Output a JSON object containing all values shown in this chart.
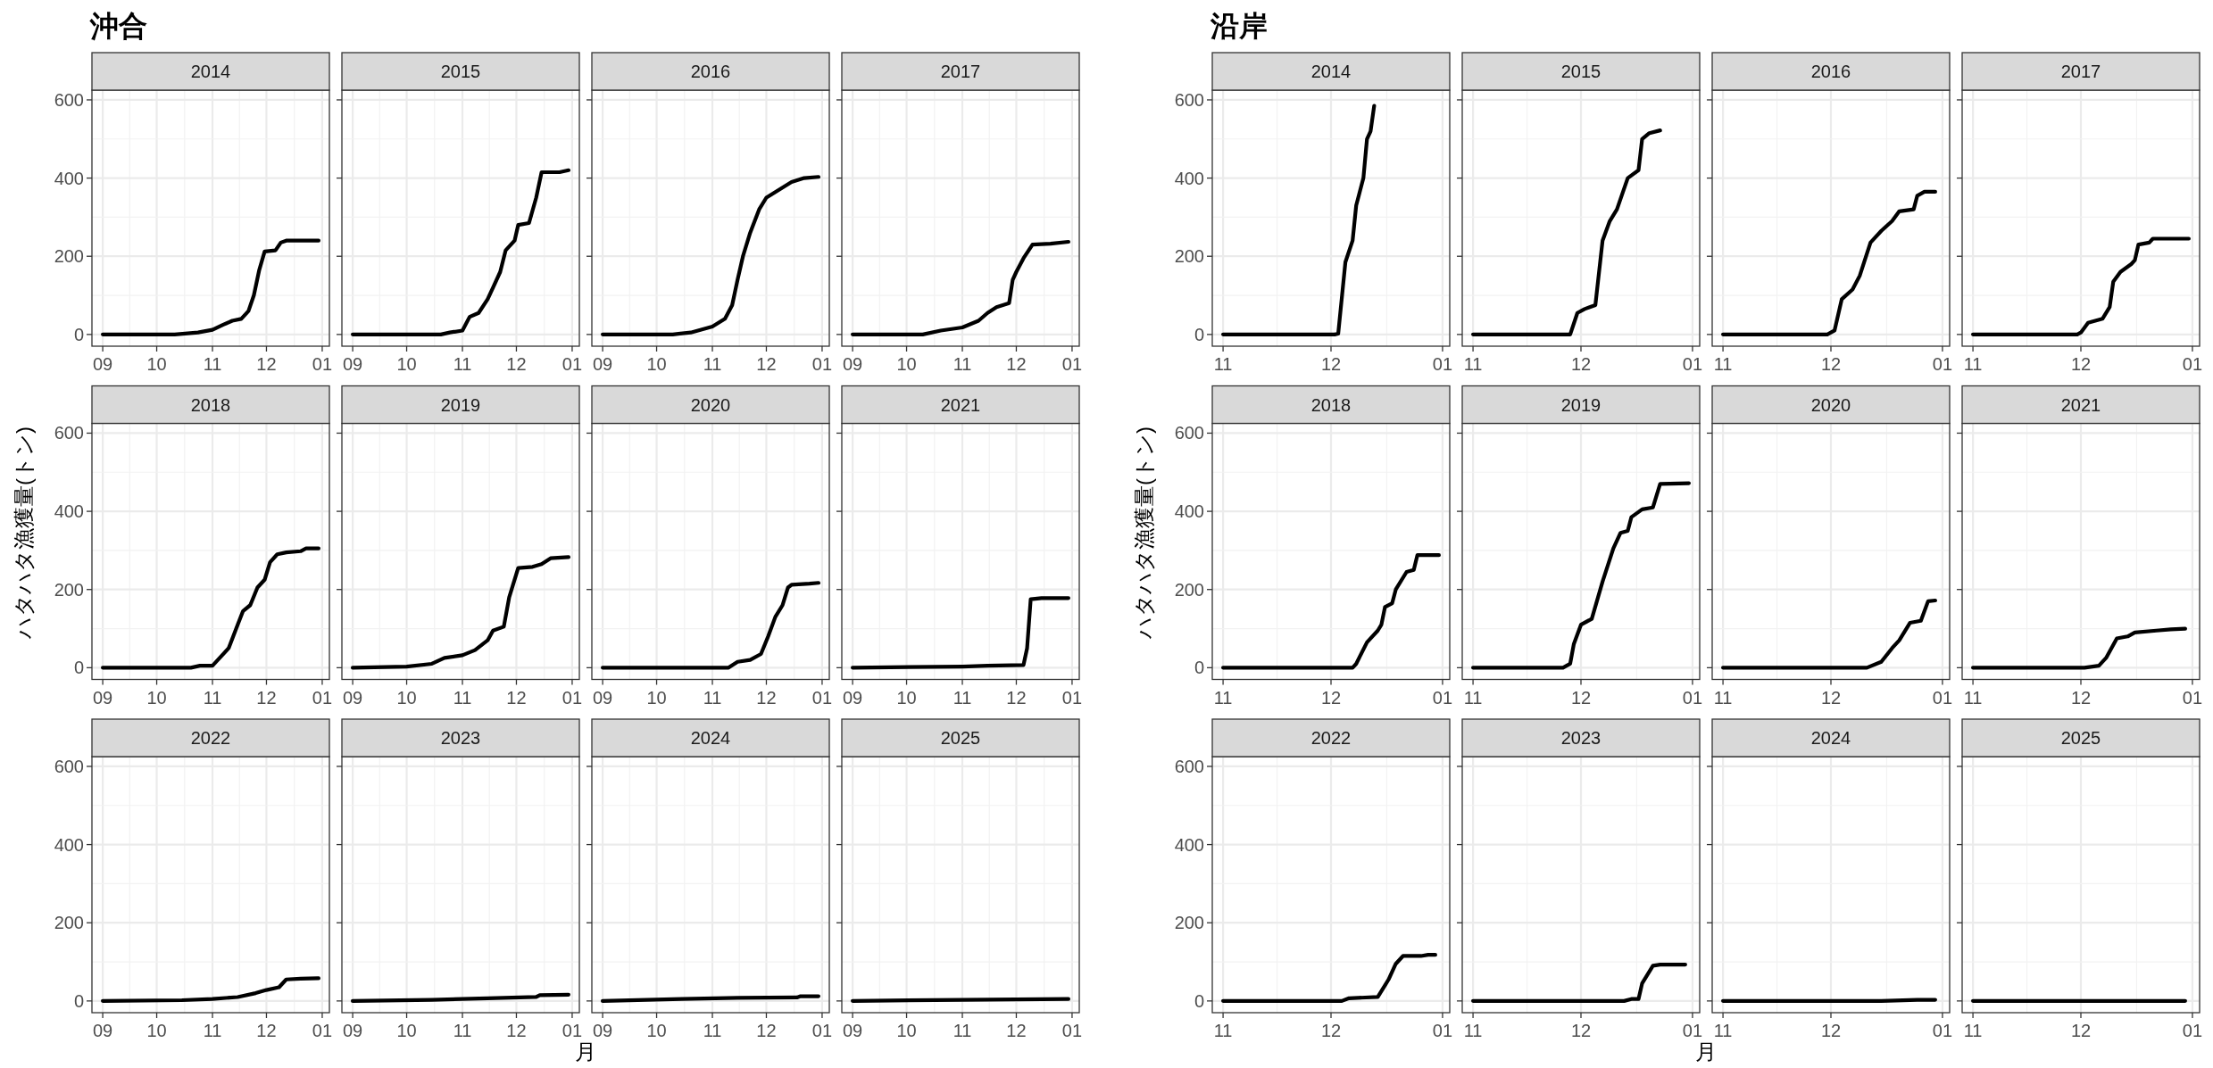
{
  "chart_data": [
    {
      "type": "line",
      "title": "2014",
      "annotations": [
        "沖合"
      ],
      "x": [
        "2014-09-01",
        "2014-10-11",
        "2014-10-24",
        "2014-11-01",
        "2014-11-07",
        "2014-11-12",
        "2014-11-17",
        "2014-11-21",
        "2014-11-24",
        "2014-11-27",
        "2014-11-30",
        "2014-12-06",
        "2014-12-09",
        "2014-12-12",
        "2014-12-30"
      ],
      "values": [
        0,
        0,
        5,
        12,
        25,
        35,
        40,
        60,
        100,
        165,
        212,
        215,
        235,
        240,
        240
      ],
      "color": "#000000",
      "xlim": [
        "2014-08-26",
        "2015-01-05"
      ],
      "xticks": [
        {
          "value": "2014-09-01",
          "label": "09"
        },
        {
          "value": "2014-10-01",
          "label": "10"
        },
        {
          "value": "2014-11-01",
          "label": "11"
        },
        {
          "value": "2014-12-01",
          "label": "12"
        },
        {
          "value": "2015-01-01",
          "label": "01"
        }
      ],
      "ylim": [
        -30,
        625
      ],
      "yticks": [
        0,
        200,
        400,
        600
      ],
      "grid": true
    },
    {
      "type": "line",
      "title": "2015",
      "x": [
        "2015-09-01",
        "2015-10-20",
        "2015-10-25",
        "2015-11-01",
        "2015-11-05",
        "2015-11-10",
        "2015-11-15",
        "2015-11-18",
        "2015-11-22",
        "2015-11-25",
        "2015-11-30",
        "2015-12-02",
        "2015-12-08",
        "2015-12-12",
        "2015-12-15",
        "2015-12-25",
        "2015-12-30"
      ],
      "values": [
        0,
        0,
        5,
        10,
        45,
        55,
        90,
        120,
        160,
        215,
        240,
        280,
        285,
        350,
        415,
        415,
        420
      ],
      "color": "#000000",
      "xlim": [
        "2015-08-26",
        "2016-01-05"
      ],
      "xticks": [
        {
          "value": "2015-09-01",
          "label": "09"
        },
        {
          "value": "2015-10-01",
          "label": "10"
        },
        {
          "value": "2015-11-01",
          "label": "11"
        },
        {
          "value": "2015-12-01",
          "label": "12"
        },
        {
          "value": "2016-01-01",
          "label": "01"
        }
      ],
      "ylim": [
        -30,
        625
      ],
      "yticks": [
        0,
        200,
        400,
        600
      ],
      "grid": true,
      "tick_labels": "x"
    },
    {
      "type": "line",
      "title": "2016",
      "x": [
        "2016-09-01",
        "2016-10-10",
        "2016-10-20",
        "2016-11-01",
        "2016-11-08",
        "2016-11-12",
        "2016-11-15",
        "2016-11-18",
        "2016-11-22",
        "2016-11-27",
        "2016-12-01",
        "2016-12-08",
        "2016-12-15",
        "2016-12-22",
        "2016-12-30"
      ],
      "values": [
        0,
        0,
        5,
        20,
        40,
        75,
        140,
        200,
        260,
        320,
        350,
        370,
        390,
        400,
        403
      ],
      "color": "#000000",
      "xlim": [
        "2016-08-26",
        "2017-01-05"
      ],
      "xticks": [
        {
          "value": "2016-09-01",
          "label": "09"
        },
        {
          "value": "2016-10-01",
          "label": "10"
        },
        {
          "value": "2016-11-01",
          "label": "11"
        },
        {
          "value": "2016-12-01",
          "label": "12"
        },
        {
          "value": "2017-01-01",
          "label": "01"
        }
      ],
      "ylim": [
        -30,
        625
      ],
      "yticks": [
        0,
        200,
        400,
        600
      ],
      "grid": true,
      "tick_labels": "x"
    },
    {
      "type": "line",
      "title": "2017",
      "x": [
        "2017-09-01",
        "2017-10-10",
        "2017-10-20",
        "2017-11-01",
        "2017-11-10",
        "2017-11-15",
        "2017-11-20",
        "2017-11-27",
        "2017-11-29",
        "2017-12-01",
        "2017-12-05",
        "2017-12-10",
        "2017-12-20",
        "2017-12-30"
      ],
      "values": [
        0,
        0,
        10,
        18,
        35,
        55,
        70,
        80,
        140,
        160,
        195,
        230,
        232,
        237
      ],
      "color": "#000000",
      "xlim": [
        "2017-08-26",
        "2018-01-05"
      ],
      "xticks": [
        {
          "value": "2017-09-01",
          "label": "09"
        },
        {
          "value": "2017-10-01",
          "label": "10"
        },
        {
          "value": "2017-11-01",
          "label": "11"
        },
        {
          "value": "2017-12-01",
          "label": "12"
        },
        {
          "value": "2018-01-01",
          "label": "01"
        }
      ],
      "ylim": [
        -30,
        625
      ],
      "yticks": [
        0,
        200,
        400,
        600
      ],
      "grid": true,
      "tick_labels": "x"
    },
    {
      "type": "line",
      "title": "2018",
      "ylabel": "ハタハタ漁獲量(トン)",
      "x": [
        "2018-09-01",
        "2018-10-20",
        "2018-10-25",
        "2018-11-01",
        "2018-11-05",
        "2018-11-10",
        "2018-11-15",
        "2018-11-18",
        "2018-11-22",
        "2018-11-26",
        "2018-11-30",
        "2018-12-03",
        "2018-12-07",
        "2018-12-12",
        "2018-12-20",
        "2018-12-23",
        "2018-12-30"
      ],
      "values": [
        0,
        0,
        5,
        5,
        25,
        50,
        110,
        145,
        160,
        205,
        225,
        270,
        290,
        295,
        298,
        305,
        305
      ],
      "color": "#000000",
      "xlim": [
        "2018-08-26",
        "2019-01-05"
      ],
      "xticks": [
        {
          "value": "2018-09-01",
          "label": "09"
        },
        {
          "value": "2018-10-01",
          "label": "10"
        },
        {
          "value": "2018-11-01",
          "label": "11"
        },
        {
          "value": "2018-12-01",
          "label": "12"
        },
        {
          "value": "2019-01-01",
          "label": "01"
        }
      ],
      "ylim": [
        -30,
        625
      ],
      "yticks": [
        0,
        200,
        400,
        600
      ],
      "grid": true
    },
    {
      "type": "line",
      "title": "2019",
      "x": [
        "2019-09-01",
        "2019-10-01",
        "2019-10-15",
        "2019-10-22",
        "2019-11-01",
        "2019-11-08",
        "2019-11-15",
        "2019-11-18",
        "2019-11-24",
        "2019-11-27",
        "2019-12-01",
        "2019-12-02",
        "2019-12-10",
        "2019-12-15",
        "2019-12-20",
        "2019-12-30"
      ],
      "values": [
        0,
        3,
        10,
        25,
        32,
        45,
        70,
        95,
        105,
        180,
        240,
        255,
        258,
        265,
        280,
        283
      ],
      "color": "#000000",
      "xlim": [
        "2019-08-26",
        "2020-01-05"
      ],
      "xticks": [
        {
          "value": "2019-09-01",
          "label": "09"
        },
        {
          "value": "2019-10-01",
          "label": "10"
        },
        {
          "value": "2019-11-01",
          "label": "11"
        },
        {
          "value": "2019-12-01",
          "label": "12"
        },
        {
          "value": "2020-01-01",
          "label": "01"
        }
      ],
      "ylim": [
        -30,
        625
      ],
      "yticks": [
        0,
        200,
        400,
        600
      ],
      "grid": true,
      "tick_labels": "x"
    },
    {
      "type": "line",
      "title": "2020",
      "x": [
        "2020-09-01",
        "2020-11-10",
        "2020-11-15",
        "2020-11-22",
        "2020-11-28",
        "2020-12-02",
        "2020-12-06",
        "2020-12-10",
        "2020-12-13",
        "2020-12-15",
        "2020-12-25",
        "2020-12-30"
      ],
      "values": [
        0,
        0,
        15,
        20,
        35,
        80,
        130,
        160,
        205,
        212,
        215,
        217
      ],
      "color": "#000000",
      "xlim": [
        "2020-08-26",
        "2021-01-05"
      ],
      "xticks": [
        {
          "value": "2020-09-01",
          "label": "09"
        },
        {
          "value": "2020-10-01",
          "label": "10"
        },
        {
          "value": "2020-11-01",
          "label": "11"
        },
        {
          "value": "2020-12-01",
          "label": "12"
        },
        {
          "value": "2021-01-01",
          "label": "01"
        }
      ],
      "ylim": [
        -30,
        625
      ],
      "yticks": [
        0,
        200,
        400,
        600
      ],
      "grid": true,
      "tick_labels": "x"
    },
    {
      "type": "line",
      "title": "2021",
      "x": [
        "2021-09-01",
        "2021-11-01",
        "2021-11-15",
        "2021-12-05",
        "2021-12-07",
        "2021-12-09",
        "2021-12-15",
        "2021-12-30"
      ],
      "values": [
        0,
        3,
        5,
        7,
        50,
        175,
        178,
        178
      ],
      "color": "#000000",
      "xlim": [
        "2021-08-26",
        "2022-01-05"
      ],
      "xticks": [
        {
          "value": "2021-09-01",
          "label": "09"
        },
        {
          "value": "2021-10-01",
          "label": "10"
        },
        {
          "value": "2021-11-01",
          "label": "11"
        },
        {
          "value": "2021-12-01",
          "label": "12"
        },
        {
          "value": "2022-01-01",
          "label": "01"
        }
      ],
      "ylim": [
        -30,
        625
      ],
      "yticks": [
        0,
        200,
        400,
        600
      ],
      "grid": true,
      "tick_labels": "x"
    },
    {
      "type": "line",
      "title": "2022",
      "x": [
        "2022-09-01",
        "2022-10-15",
        "2022-11-01",
        "2022-11-15",
        "2022-11-25",
        "2022-12-01",
        "2022-12-08",
        "2022-12-12",
        "2022-12-20",
        "2022-12-30"
      ],
      "values": [
        0,
        2,
        5,
        10,
        20,
        28,
        35,
        55,
        57,
        58
      ],
      "color": "#000000",
      "xlim": [
        "2022-08-26",
        "2023-01-05"
      ],
      "xticks": [
        {
          "value": "2022-09-01",
          "label": "09"
        },
        {
          "value": "2022-10-01",
          "label": "10"
        },
        {
          "value": "2022-11-01",
          "label": "11"
        },
        {
          "value": "2022-12-01",
          "label": "12"
        },
        {
          "value": "2023-01-01",
          "label": "01"
        }
      ],
      "ylim": [
        -30,
        625
      ],
      "yticks": [
        0,
        200,
        400,
        600
      ],
      "grid": true
    },
    {
      "type": "line",
      "title": "2023",
      "xlabel": "月",
      "x": [
        "2023-09-01",
        "2023-10-15",
        "2023-11-15",
        "2023-12-12",
        "2023-12-14",
        "2023-12-30"
      ],
      "values": [
        0,
        3,
        7,
        10,
        15,
        16
      ],
      "color": "#000000",
      "xlim": [
        "2023-08-26",
        "2024-01-05"
      ],
      "xticks": [
        {
          "value": "2023-09-01",
          "label": "09"
        },
        {
          "value": "2023-10-01",
          "label": "10"
        },
        {
          "value": "2023-11-01",
          "label": "11"
        },
        {
          "value": "2023-12-01",
          "label": "12"
        },
        {
          "value": "2024-01-01",
          "label": "01"
        }
      ],
      "ylim": [
        -30,
        625
      ],
      "yticks": [
        0,
        200,
        400,
        600
      ],
      "grid": true,
      "tick_labels": "x"
    },
    {
      "type": "line",
      "title": "2024",
      "x": [
        "2024-09-01",
        "2024-10-15",
        "2024-11-15",
        "2024-12-18",
        "2024-12-20",
        "2024-12-30"
      ],
      "values": [
        0,
        5,
        8,
        9,
        12,
        12
      ],
      "color": "#000000",
      "xlim": [
        "2024-08-26",
        "2025-01-05"
      ],
      "xticks": [
        {
          "value": "2024-09-01",
          "label": "09"
        },
        {
          "value": "2024-10-01",
          "label": "10"
        },
        {
          "value": "2024-11-01",
          "label": "11"
        },
        {
          "value": "2024-12-01",
          "label": "12"
        },
        {
          "value": "2025-01-01",
          "label": "01"
        }
      ],
      "ylim": [
        -30,
        625
      ],
      "yticks": [
        0,
        200,
        400,
        600
      ],
      "grid": true,
      "tick_labels": "x"
    },
    {
      "type": "line",
      "title": "2025",
      "x": [
        "2025-09-01",
        "2025-11-01",
        "2025-12-30"
      ],
      "values": [
        0,
        3,
        5
      ],
      "color": "#000000",
      "xlim": [
        "2025-08-26",
        "2026-01-05"
      ],
      "xticks": [
        {
          "value": "2025-09-01",
          "label": "09"
        },
        {
          "value": "2025-10-01",
          "label": "10"
        },
        {
          "value": "2025-11-01",
          "label": "11"
        },
        {
          "value": "2025-12-01",
          "label": "12"
        },
        {
          "value": "2026-01-01",
          "label": "01"
        }
      ],
      "ylim": [
        -30,
        625
      ],
      "yticks": [
        0,
        200,
        400,
        600
      ],
      "grid": true,
      "tick_labels": "x"
    },
    {
      "type": "line",
      "title": "2014",
      "annotations": [
        "沿岸"
      ],
      "x": [
        "2014-11-01",
        "2014-12-02",
        "2014-12-03",
        "2014-12-05",
        "2014-12-07",
        "2014-12-08",
        "2014-12-10",
        "2014-12-11",
        "2014-12-12",
        "2014-12-13"
      ],
      "values": [
        0,
        0,
        2,
        185,
        240,
        330,
        400,
        500,
        520,
        585
      ],
      "color": "#000000",
      "xlim": [
        "2014-10-29",
        "2015-01-03"
      ],
      "xticks": [
        {
          "value": "2014-11-01",
          "label": "11"
        },
        {
          "value": "2014-12-01",
          "label": "12"
        },
        {
          "value": "2015-01-01",
          "label": "01"
        }
      ],
      "ylim": [
        -30,
        625
      ],
      "yticks": [
        0,
        200,
        400,
        600
      ],
      "grid": true
    },
    {
      "type": "line",
      "title": "2015",
      "x": [
        "2015-11-01",
        "2015-11-28",
        "2015-11-30",
        "2015-12-02",
        "2015-12-05",
        "2015-12-07",
        "2015-12-09",
        "2015-12-11",
        "2015-12-14",
        "2015-12-17",
        "2015-12-18",
        "2015-12-20",
        "2015-12-23"
      ],
      "values": [
        0,
        0,
        55,
        65,
        75,
        240,
        290,
        320,
        400,
        420,
        500,
        515,
        522
      ],
      "color": "#000000",
      "xlim": [
        "2015-10-29",
        "2016-01-03"
      ],
      "xticks": [
        {
          "value": "2015-11-01",
          "label": "11"
        },
        {
          "value": "2015-12-01",
          "label": "12"
        },
        {
          "value": "2016-01-01",
          "label": "01"
        }
      ],
      "ylim": [
        -30,
        625
      ],
      "yticks": [
        0,
        200,
        400,
        600
      ],
      "grid": true,
      "tick_labels": "x"
    },
    {
      "type": "line",
      "title": "2016",
      "x": [
        "2016-11-01",
        "2016-11-30",
        "2016-12-02",
        "2016-12-04",
        "2016-12-07",
        "2016-12-09",
        "2016-12-12",
        "2016-12-15",
        "2016-12-18",
        "2016-12-20",
        "2016-12-24",
        "2016-12-25",
        "2016-12-27",
        "2016-12-30"
      ],
      "values": [
        0,
        0,
        10,
        90,
        115,
        150,
        235,
        265,
        290,
        315,
        320,
        355,
        365,
        365
      ],
      "color": "#000000",
      "xlim": [
        "2016-10-29",
        "2017-01-03"
      ],
      "xticks": [
        {
          "value": "2016-11-01",
          "label": "11"
        },
        {
          "value": "2016-12-01",
          "label": "12"
        },
        {
          "value": "2017-01-01",
          "label": "01"
        }
      ],
      "ylim": [
        -30,
        625
      ],
      "yticks": [
        0,
        200,
        400,
        600
      ],
      "grid": true,
      "tick_labels": "x"
    },
    {
      "type": "line",
      "title": "2017",
      "x": [
        "2017-11-01",
        "2017-11-30",
        "2017-12-01",
        "2017-12-03",
        "2017-12-07",
        "2017-12-09",
        "2017-12-10",
        "2017-12-12",
        "2017-12-15",
        "2017-12-16",
        "2017-12-17",
        "2017-12-20",
        "2017-12-21",
        "2017-12-31"
      ],
      "values": [
        0,
        0,
        5,
        30,
        40,
        70,
        135,
        160,
        180,
        190,
        230,
        235,
        245,
        245
      ],
      "color": "#000000",
      "xlim": [
        "2017-10-29",
        "2018-01-03"
      ],
      "xticks": [
        {
          "value": "2017-11-01",
          "label": "11"
        },
        {
          "value": "2017-12-01",
          "label": "12"
        },
        {
          "value": "2018-01-01",
          "label": "01"
        }
      ],
      "ylim": [
        -30,
        625
      ],
      "yticks": [
        0,
        200,
        400,
        600
      ],
      "grid": true,
      "tick_labels": "x"
    },
    {
      "type": "line",
      "title": "2018",
      "ylabel": "ハタハタ漁獲量(トン)",
      "x": [
        "2018-11-01",
        "2018-12-07",
        "2018-12-08",
        "2018-12-11",
        "2018-12-14",
        "2018-12-15",
        "2018-12-16",
        "2018-12-18",
        "2018-12-19",
        "2018-12-22",
        "2018-12-24",
        "2018-12-25",
        "2018-12-31"
      ],
      "values": [
        0,
        0,
        10,
        65,
        95,
        110,
        155,
        165,
        200,
        245,
        250,
        288,
        288
      ],
      "color": "#000000",
      "xlim": [
        "2018-10-29",
        "2019-01-03"
      ],
      "xticks": [
        {
          "value": "2018-11-01",
          "label": "11"
        },
        {
          "value": "2018-12-01",
          "label": "12"
        },
        {
          "value": "2019-01-01",
          "label": "01"
        }
      ],
      "ylim": [
        -30,
        625
      ],
      "yticks": [
        0,
        200,
        400,
        600
      ],
      "grid": true
    },
    {
      "type": "line",
      "title": "2019",
      "x": [
        "2019-11-01",
        "2019-11-26",
        "2019-11-28",
        "2019-11-29",
        "2019-12-01",
        "2019-12-04",
        "2019-12-07",
        "2019-12-10",
        "2019-12-12",
        "2019-12-14",
        "2019-12-15",
        "2019-12-18",
        "2019-12-21",
        "2019-12-23",
        "2019-12-31"
      ],
      "values": [
        0,
        0,
        10,
        60,
        110,
        125,
        220,
        305,
        345,
        350,
        385,
        405,
        410,
        470,
        472
      ],
      "color": "#000000",
      "xlim": [
        "2019-10-29",
        "2020-01-03"
      ],
      "xticks": [
        {
          "value": "2019-11-01",
          "label": "11"
        },
        {
          "value": "2019-12-01",
          "label": "12"
        },
        {
          "value": "2020-01-01",
          "label": "01"
        }
      ],
      "ylim": [
        -30,
        625
      ],
      "yticks": [
        0,
        200,
        400,
        600
      ],
      "grid": true,
      "tick_labels": "x"
    },
    {
      "type": "line",
      "title": "2020",
      "x": [
        "2020-11-01",
        "2020-12-11",
        "2020-12-15",
        "2020-12-18",
        "2020-12-20",
        "2020-12-23",
        "2020-12-26",
        "2020-12-28",
        "2020-12-30"
      ],
      "values": [
        0,
        0,
        15,
        50,
        70,
        115,
        120,
        170,
        172
      ],
      "color": "#000000",
      "xlim": [
        "2020-10-29",
        "2021-01-03"
      ],
      "xticks": [
        {
          "value": "2020-11-01",
          "label": "11"
        },
        {
          "value": "2020-12-01",
          "label": "12"
        },
        {
          "value": "2021-01-01",
          "label": "01"
        }
      ],
      "ylim": [
        -30,
        625
      ],
      "yticks": [
        0,
        200,
        400,
        600
      ],
      "grid": true,
      "tick_labels": "x"
    },
    {
      "type": "line",
      "title": "2021",
      "x": [
        "2021-11-01",
        "2021-12-02",
        "2021-12-06",
        "2021-12-08",
        "2021-12-11",
        "2021-12-14",
        "2021-12-16",
        "2021-12-22",
        "2021-12-26",
        "2021-12-30"
      ],
      "values": [
        0,
        0,
        5,
        25,
        75,
        80,
        90,
        95,
        98,
        100
      ],
      "color": "#000000",
      "xlim": [
        "2021-10-29",
        "2022-01-03"
      ],
      "xticks": [
        {
          "value": "2021-11-01",
          "label": "11"
        },
        {
          "value": "2021-12-01",
          "label": "12"
        },
        {
          "value": "2022-01-01",
          "label": "01"
        }
      ],
      "ylim": [
        -30,
        625
      ],
      "yticks": [
        0,
        200,
        400,
        600
      ],
      "grid": true,
      "tick_labels": "x"
    },
    {
      "type": "line",
      "title": "2022",
      "x": [
        "2022-11-01",
        "2022-12-04",
        "2022-12-06",
        "2022-12-14",
        "2022-12-16",
        "2022-12-17",
        "2022-12-19",
        "2022-12-21",
        "2022-12-26",
        "2022-12-28",
        "2022-12-30"
      ],
      "values": [
        0,
        0,
        7,
        10,
        40,
        55,
        95,
        115,
        115,
        118,
        118
      ],
      "color": "#000000",
      "xlim": [
        "2022-10-29",
        "2023-01-03"
      ],
      "xticks": [
        {
          "value": "2022-11-01",
          "label": "11"
        },
        {
          "value": "2022-12-01",
          "label": "12"
        },
        {
          "value": "2023-01-01",
          "label": "01"
        }
      ],
      "ylim": [
        -30,
        625
      ],
      "yticks": [
        0,
        200,
        400,
        600
      ],
      "grid": true
    },
    {
      "type": "line",
      "title": "2023",
      "xlabel": "月",
      "x": [
        "2023-11-01",
        "2023-12-13",
        "2023-12-15",
        "2023-12-17",
        "2023-12-18",
        "2023-12-21",
        "2023-12-23",
        "2023-12-30"
      ],
      "values": [
        0,
        0,
        5,
        5,
        45,
        90,
        93,
        93
      ],
      "color": "#000000",
      "xlim": [
        "2023-10-29",
        "2024-01-03"
      ],
      "xticks": [
        {
          "value": "2023-11-01",
          "label": "11"
        },
        {
          "value": "2023-12-01",
          "label": "12"
        },
        {
          "value": "2024-01-01",
          "label": "01"
        }
      ],
      "ylim": [
        -30,
        625
      ],
      "yticks": [
        0,
        200,
        400,
        600
      ],
      "grid": true,
      "tick_labels": "x"
    },
    {
      "type": "line",
      "title": "2024",
      "x": [
        "2024-11-01",
        "2024-12-15",
        "2024-12-25",
        "2024-12-30"
      ],
      "values": [
        0,
        0,
        3,
        3
      ],
      "color": "#000000",
      "xlim": [
        "2024-10-29",
        "2025-01-03"
      ],
      "xticks": [
        {
          "value": "2024-11-01",
          "label": "11"
        },
        {
          "value": "2024-12-01",
          "label": "12"
        },
        {
          "value": "2025-01-01",
          "label": "01"
        }
      ],
      "ylim": [
        -30,
        625
      ],
      "yticks": [
        0,
        200,
        400,
        600
      ],
      "grid": true,
      "tick_labels": "x"
    },
    {
      "type": "line",
      "title": "2025",
      "x": [
        "2025-11-01",
        "2025-12-30"
      ],
      "values": [
        0,
        0
      ],
      "color": "#000000",
      "xlim": [
        "2025-10-29",
        "2026-01-03"
      ],
      "xticks": [
        {
          "value": "2025-11-01",
          "label": "11"
        },
        {
          "value": "2025-12-01",
          "label": "12"
        },
        {
          "value": "2026-01-01",
          "label": "01"
        }
      ],
      "ylim": [
        -30,
        625
      ],
      "yticks": [
        0,
        200,
        400,
        600
      ],
      "grid": true,
      "tick_labels": "x"
    }
  ]
}
